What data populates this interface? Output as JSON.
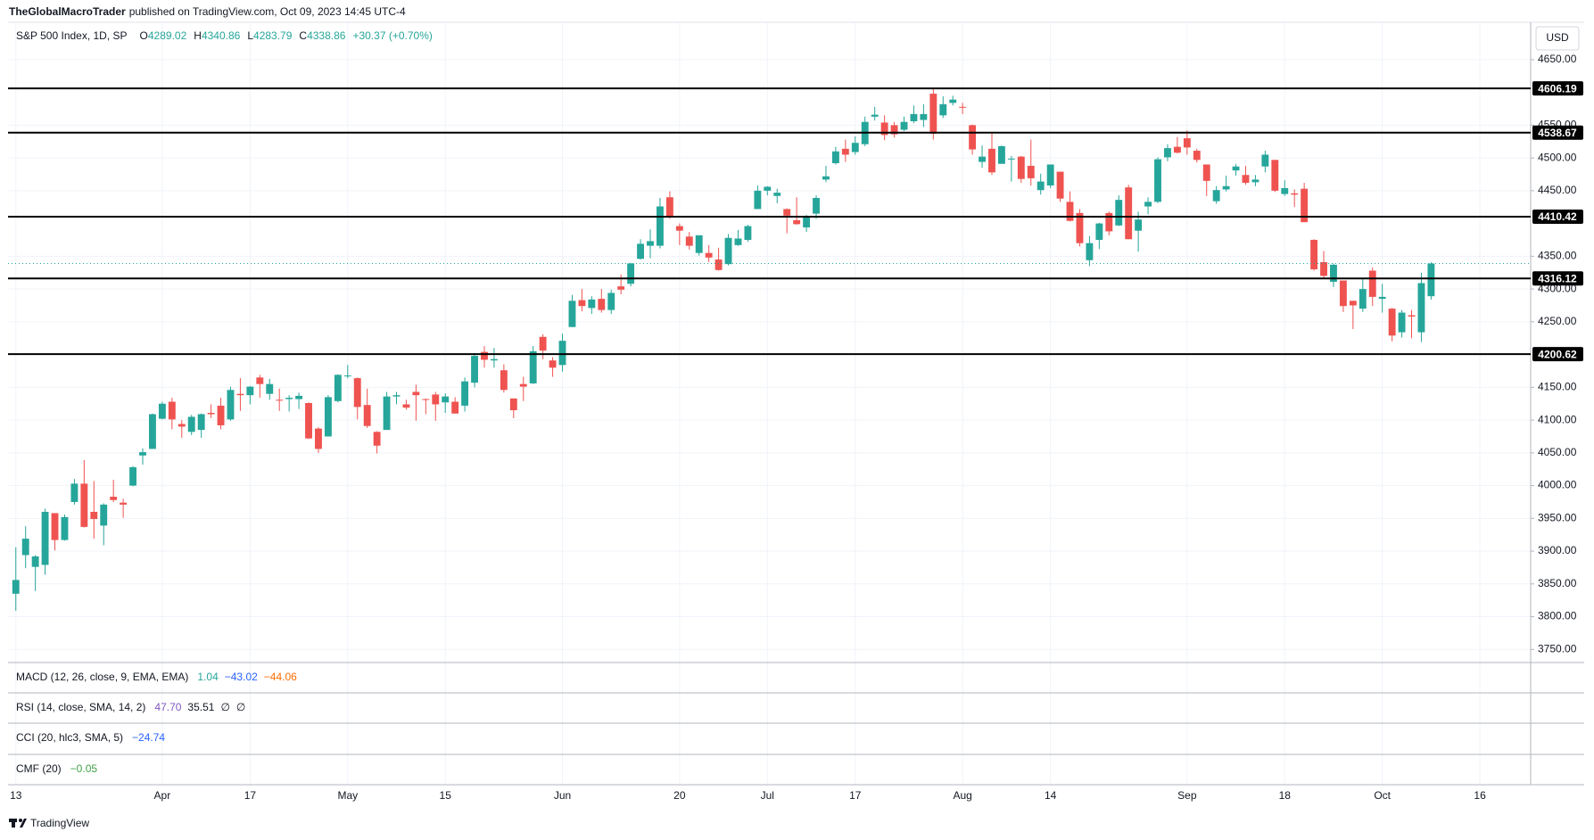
{
  "header": {
    "author": "TheGlobalMacroTrader",
    "published": "published on TradingView.com, Oct 09, 2023 14:45 UTC-4"
  },
  "chart_data": {
    "type": "candlestick",
    "symbol": "S&P 500 Index, 1D, SP",
    "legend_labels": [
      "O",
      "H",
      "L",
      "C"
    ],
    "change": "+30.37 (+0.70%)",
    "currency": "USD",
    "up_color": "#26a69a",
    "down_color": "#ef5350",
    "level_color": "#000000",
    "grid": true,
    "levels": [
      4606.19,
      4538.67,
      4410.42,
      4316.12,
      4200.62
    ],
    "xlim": [
      -0.8,
      155.2
    ],
    "xticks": [
      {
        "value": 0,
        "label": "13"
      },
      {
        "value": 15,
        "label": "Apr"
      },
      {
        "value": 24,
        "label": "17"
      },
      {
        "value": 34,
        "label": "May"
      },
      {
        "value": 44,
        "label": "15"
      },
      {
        "value": 56,
        "label": "Jun"
      },
      {
        "value": 68,
        "label": "20"
      },
      {
        "value": 77,
        "label": "Jul"
      },
      {
        "value": 86,
        "label": "17"
      },
      {
        "value": 97,
        "label": "Aug"
      },
      {
        "value": 106,
        "label": "14"
      },
      {
        "value": 120,
        "label": "Sep"
      },
      {
        "value": 130,
        "label": "18"
      },
      {
        "value": 140,
        "label": "Oct"
      },
      {
        "value": 150,
        "label": "16"
      }
    ],
    "ylim": [
      3730,
      4707
    ],
    "yticks": [
      {
        "value": 3750,
        "label": "3750.00"
      },
      {
        "value": 3800,
        "label": "3800.00"
      },
      {
        "value": 3850,
        "label": "3850.00"
      },
      {
        "value": 3900,
        "label": "3900.00"
      },
      {
        "value": 3950,
        "label": "3950.00"
      },
      {
        "value": 4000,
        "label": "4000.00"
      },
      {
        "value": 4050,
        "label": "4050.00"
      },
      {
        "value": 4100,
        "label": "4100.00"
      },
      {
        "value": 4150,
        "label": "4150.00"
      },
      {
        "value": 4250,
        "label": "4250.00"
      },
      {
        "value": 4300,
        "label": "4300.00"
      },
      {
        "value": 4350,
        "label": "4350.00"
      },
      {
        "value": 4450,
        "label": "4450.00"
      },
      {
        "value": 4500,
        "label": "4500.00"
      },
      {
        "value": 4550,
        "label": "4550.00"
      },
      {
        "value": 4650,
        "label": "4650.00"
      }
    ],
    "candles": [
      [
        3835,
        3906,
        3809,
        3856
      ],
      [
        3894,
        3938,
        3874,
        3919
      ],
      [
        3876,
        3894,
        3839,
        3892
      ],
      [
        3879,
        3965,
        3864,
        3960
      ],
      [
        3958,
        3958,
        3901,
        3917
      ],
      [
        3917,
        3956,
        3916,
        3952
      ],
      [
        3975,
        4010,
        3971,
        4003
      ],
      [
        4003,
        4039,
        3936,
        3937
      ],
      [
        3960,
        4007,
        3919,
        3949
      ],
      [
        3939,
        3973,
        3909,
        3971
      ],
      [
        3983,
        4009,
        3975,
        3978
      ],
      [
        3974,
        3980,
        3951,
        3971
      ],
      [
        4000,
        4030,
        3999,
        4028
      ],
      [
        4046,
        4057,
        4032,
        4051
      ],
      [
        4056,
        4110,
        4056,
        4109
      ],
      [
        4102,
        4128,
        4101,
        4125
      ],
      [
        4128,
        4134,
        4086,
        4101
      ],
      [
        4094,
        4100,
        4073,
        4090
      ],
      [
        4082,
        4108,
        4077,
        4105
      ],
      [
        4085,
        4110,
        4073,
        4109
      ],
      [
        4111,
        4124,
        4103,
        4109
      ],
      [
        4122,
        4134,
        4086,
        4092
      ],
      [
        4101,
        4151,
        4099,
        4146
      ],
      [
        4140,
        4164,
        4114,
        4138
      ],
      [
        4138,
        4152,
        4124,
        4151
      ],
      [
        4165,
        4169,
        4134,
        4155
      ],
      [
        4140,
        4163,
        4131,
        4155
      ],
      [
        4131,
        4148,
        4114,
        4130
      ],
      [
        4132,
        4138,
        4113,
        4134
      ],
      [
        4132,
        4142,
        4117,
        4137
      ],
      [
        4126,
        4127,
        4071,
        4072
      ],
      [
        4087,
        4089,
        4050,
        4056
      ],
      [
        4075,
        4138,
        4075,
        4135
      ],
      [
        4129,
        4170,
        4127,
        4169
      ],
      [
        4167,
        4184,
        4164,
        4168
      ],
      [
        4164,
        4165,
        4101,
        4120
      ],
      [
        4123,
        4148,
        4088,
        4091
      ],
      [
        4082,
        4083,
        4049,
        4061
      ],
      [
        4085,
        4143,
        4085,
        4136
      ],
      [
        4136,
        4143,
        4124,
        4138
      ],
      [
        4124,
        4131,
        4116,
        4119
      ],
      [
        4143,
        4154,
        4099,
        4138
      ],
      [
        4132,
        4133,
        4109,
        4131
      ],
      [
        4139,
        4143,
        4099,
        4124
      ],
      [
        4127,
        4141,
        4111,
        4136
      ],
      [
        4128,
        4135,
        4110,
        4110
      ],
      [
        4122,
        4165,
        4113,
        4159
      ],
      [
        4157,
        4202,
        4150,
        4198
      ],
      [
        4204,
        4213,
        4180,
        4192
      ],
      [
        4191,
        4210,
        4180,
        4193
      ],
      [
        4176,
        4185,
        4142,
        4146
      ],
      [
        4133,
        4133,
        4103,
        4115
      ],
      [
        4155,
        4166,
        4129,
        4151
      ],
      [
        4156,
        4213,
        4155,
        4205
      ],
      [
        4227,
        4231,
        4193,
        4206
      ],
      [
        4191,
        4196,
        4166,
        4180
      ],
      [
        4184,
        4232,
        4174,
        4221
      ],
      [
        4242,
        4291,
        4242,
        4282
      ],
      [
        4283,
        4300,
        4266,
        4274
      ],
      [
        4271,
        4289,
        4262,
        4284
      ],
      [
        4285,
        4300,
        4264,
        4268
      ],
      [
        4268,
        4299,
        4262,
        4294
      ],
      [
        4304,
        4322,
        4292,
        4299
      ],
      [
        4308,
        4340,
        4304,
        4339
      ],
      [
        4346,
        4376,
        4345,
        4369
      ],
      [
        4366,
        4391,
        4347,
        4373
      ],
      [
        4366,
        4439,
        4362,
        4426
      ],
      [
        4440,
        4449,
        4407,
        4410
      ],
      [
        4396,
        4400,
        4367,
        4389
      ],
      [
        4380,
        4387,
        4360,
        4366
      ],
      [
        4355,
        4382,
        4351,
        4382
      ],
      [
        4355,
        4367,
        4341,
        4348
      ],
      [
        4345,
        4363,
        4328,
        4329
      ],
      [
        4338,
        4384,
        4336,
        4378
      ],
      [
        4367,
        4390,
        4366,
        4377
      ],
      [
        4375,
        4398,
        4372,
        4396
      ],
      [
        4422,
        4458,
        4422,
        4450
      ],
      [
        4450,
        4457,
        4443,
        4456
      ],
      [
        4442,
        4453,
        4431,
        4447
      ],
      [
        4422,
        4423,
        4385,
        4412
      ],
      [
        4405,
        4440,
        4398,
        4399
      ],
      [
        4394,
        4413,
        4387,
        4410
      ],
      [
        4415,
        4443,
        4407,
        4439
      ],
      [
        4467,
        4488,
        4463,
        4472
      ],
      [
        4492,
        4517,
        4490,
        4510
      ],
      [
        4514,
        4528,
        4494,
        4505
      ],
      [
        4509,
        4533,
        4505,
        4523
      ],
      [
        4521,
        4563,
        4518,
        4555
      ],
      [
        4563,
        4578,
        4557,
        4566
      ],
      [
        4554,
        4565,
        4527,
        4535
      ],
      [
        4550,
        4555,
        4531,
        4536
      ],
      [
        4543,
        4563,
        4541,
        4555
      ],
      [
        4556,
        4580,
        4553,
        4567
      ],
      [
        4558,
        4582,
        4547,
        4567
      ],
      [
        4598,
        4607,
        4528,
        4537
      ],
      [
        4565,
        4594,
        4561,
        4582
      ],
      [
        4584,
        4595,
        4580,
        4589
      ],
      [
        4578,
        4584,
        4567,
        4577
      ],
      [
        4550,
        4551,
        4505,
        4513
      ],
      [
        4494,
        4519,
        4485,
        4502
      ],
      [
        4514,
        4540,
        4474,
        4478
      ],
      [
        4491,
        4519,
        4491,
        4518
      ],
      [
        4498,
        4503,
        4464,
        4499
      ],
      [
        4502,
        4503,
        4462,
        4468
      ],
      [
        4488,
        4528,
        4458,
        4469
      ],
      [
        4451,
        4476,
        4444,
        4464
      ],
      [
        4458,
        4490,
        4454,
        4490
      ],
      [
        4479,
        4479,
        4433,
        4438
      ],
      [
        4433,
        4449,
        4403,
        4404
      ],
      [
        4416,
        4422,
        4365,
        4370
      ],
      [
        4344,
        4381,
        4335,
        4370
      ],
      [
        4375,
        4401,
        4361,
        4400
      ],
      [
        4416,
        4418,
        4382,
        4388
      ],
      [
        4397,
        4443,
        4396,
        4436
      ],
      [
        4455,
        4459,
        4376,
        4376
      ],
      [
        4389,
        4418,
        4357,
        4406
      ],
      [
        4426,
        4440,
        4414,
        4433
      ],
      [
        4433,
        4501,
        4431,
        4498
      ],
      [
        4501,
        4521,
        4495,
        4515
      ],
      [
        4517,
        4532,
        4507,
        4508
      ],
      [
        4530,
        4542,
        4505,
        4516
      ],
      [
        4511,
        4514,
        4493,
        4497
      ],
      [
        4490,
        4490,
        4442,
        4465
      ],
      [
        4434,
        4457,
        4430,
        4451
      ],
      [
        4452,
        4473,
        4449,
        4457
      ],
      [
        4481,
        4491,
        4473,
        4487
      ],
      [
        4474,
        4488,
        4459,
        4462
      ],
      [
        4463,
        4474,
        4457,
        4467
      ],
      [
        4487,
        4511,
        4478,
        4505
      ],
      [
        4497,
        4497,
        4448,
        4450
      ],
      [
        4445,
        4466,
        4442,
        4454
      ],
      [
        4446,
        4452,
        4425,
        4444
      ],
      [
        4453,
        4462,
        4402,
        4402
      ],
      [
        4375,
        4376,
        4328,
        4330
      ],
      [
        4341,
        4358,
        4316,
        4320
      ],
      [
        4311,
        4339,
        4303,
        4337
      ],
      [
        4313,
        4313,
        4265,
        4274
      ],
      [
        4282,
        4282,
        4239,
        4275
      ],
      [
        4270,
        4317,
        4265,
        4300
      ],
      [
        4328,
        4333,
        4274,
        4288
      ],
      [
        4285,
        4308,
        4264,
        4288
      ],
      [
        4270,
        4271,
        4220,
        4229
      ],
      [
        4234,
        4268,
        4226,
        4264
      ],
      [
        4260,
        4268,
        4225,
        4258
      ],
      [
        4234,
        4325,
        4219,
        4309
      ],
      [
        4289.02,
        4340.86,
        4283.79,
        4338.86
      ]
    ]
  },
  "indicators": [
    {
      "title": "MACD (12, 26, close, 9, EMA, EMA)",
      "values": [
        "1.04",
        "−43.02",
        "−44.06"
      ],
      "colors": [
        "#26a69a",
        "#2962ff",
        "#ff6d00"
      ]
    },
    {
      "title": "RSI (14, close, SMA, 14, 2)",
      "values": [
        "47.70",
        "35.51",
        "∅",
        "∅"
      ],
      "colors": [
        "#7e57c2",
        "#131722",
        "#131722",
        "#131722"
      ]
    },
    {
      "title": "CCI (20, hlc3, SMA, 5)",
      "values": [
        "−24.74"
      ],
      "colors": [
        "#2962ff"
      ]
    },
    {
      "title": "CMF (20)",
      "values": [
        "−0.05"
      ],
      "colors": [
        "#43a047"
      ]
    }
  ],
  "footer": "TradingView"
}
